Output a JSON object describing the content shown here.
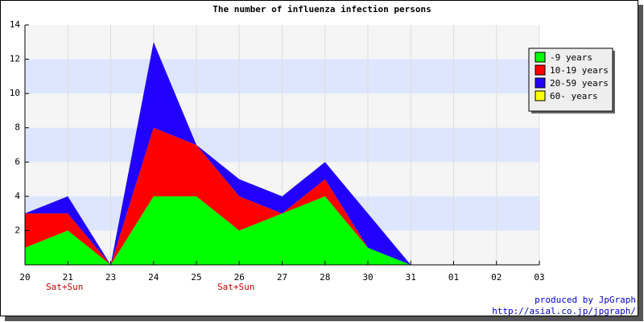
{
  "chart_data": {
    "type": "stacked-area",
    "title": "The number of influenza infection persons",
    "categories": [
      "20",
      "21",
      "23",
      "24",
      "25",
      "26",
      "27",
      "28",
      "30",
      "31",
      "01",
      "02",
      "03"
    ],
    "x_sublabels": [
      null,
      "Sat+Sun",
      null,
      null,
      null,
      "Sat+Sun",
      null,
      null,
      null,
      null,
      null,
      null,
      null
    ],
    "series": [
      {
        "name": "-9 years",
        "color": "#00ff00",
        "values": [
          1,
          2,
          0,
          4,
          4,
          2,
          3,
          4,
          1,
          0,
          null,
          null,
          null
        ]
      },
      {
        "name": "10-19 years",
        "color": "#ff0000",
        "values": [
          2,
          1,
          0,
          4,
          3,
          2,
          0,
          1,
          0,
          0,
          null,
          null,
          null
        ]
      },
      {
        "name": "20-59 years",
        "color": "#2200ff",
        "values": [
          0,
          1,
          0,
          5,
          0,
          1,
          1,
          1,
          2,
          0,
          null,
          null,
          null
        ]
      },
      {
        "name": "60- years",
        "color": "#ffff00",
        "values": [
          0,
          0,
          0,
          0,
          0,
          0,
          0,
          0,
          0,
          0,
          null,
          null,
          null
        ]
      }
    ],
    "ylim": [
      0,
      14
    ],
    "yticks": [
      2,
      4,
      6,
      8,
      10,
      12,
      14
    ],
    "legend": "top-right",
    "footer": [
      "produced by JpGraph",
      "http://asial.co.jp/jpgraph/"
    ]
  }
}
